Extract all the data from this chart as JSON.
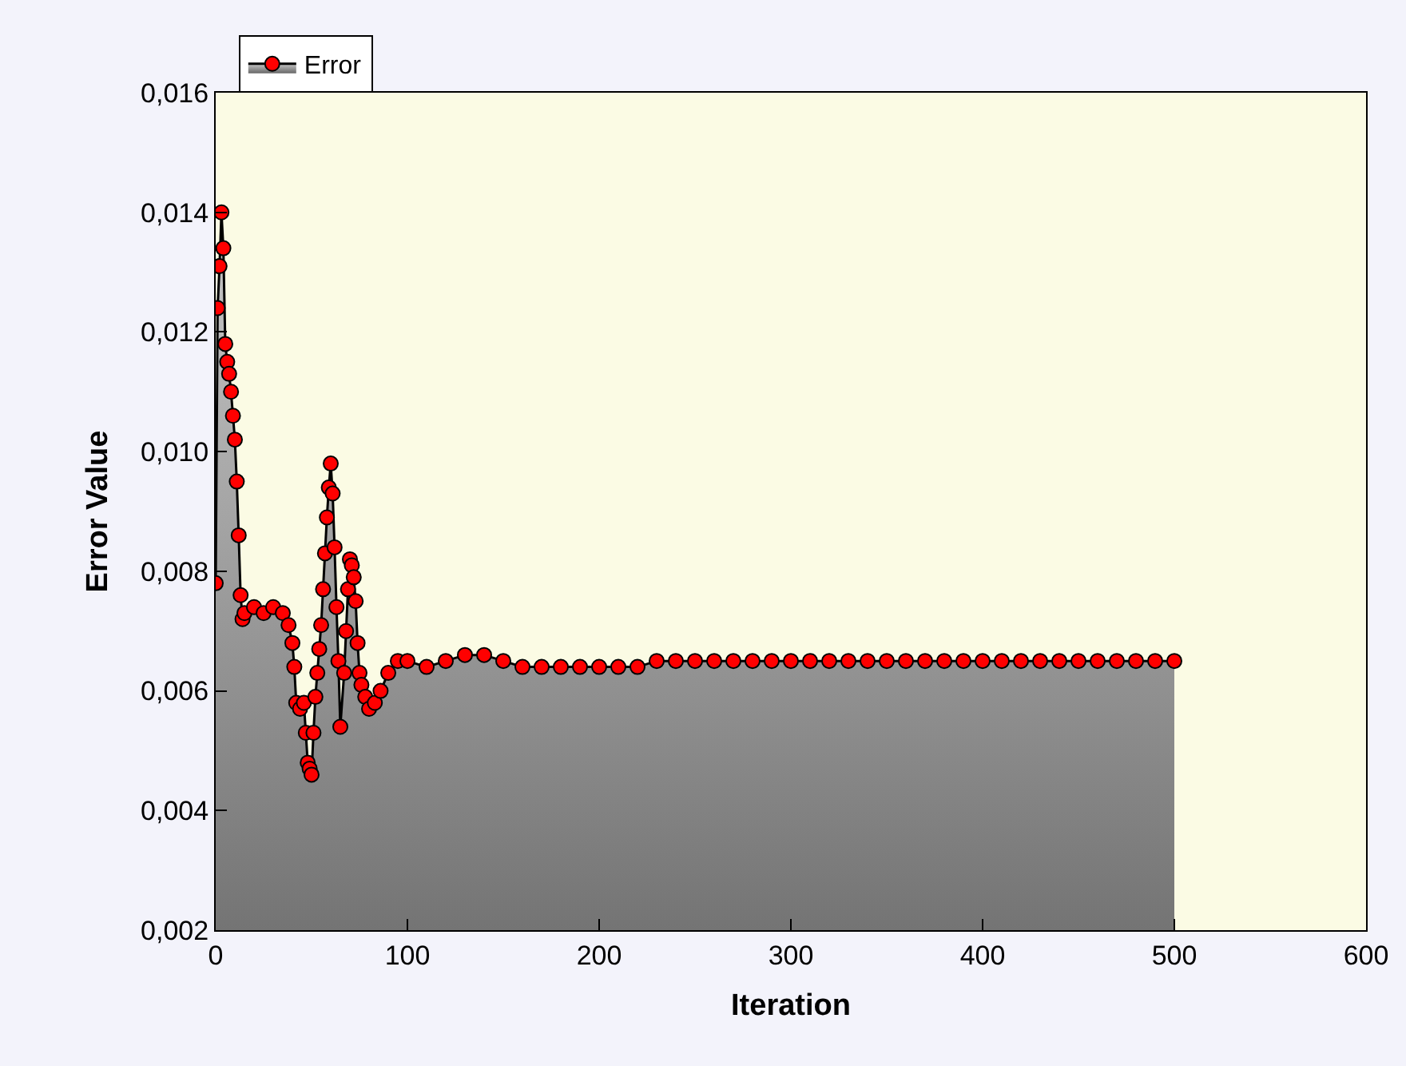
{
  "chart_data": {
    "type": "area",
    "xlabel": "Iteration",
    "ylabel": "Error Value",
    "x": [
      0,
      1,
      2,
      3,
      4,
      5,
      6,
      7,
      8,
      9,
      10,
      11,
      12,
      13,
      14,
      15,
      20,
      25,
      30,
      35,
      38,
      40,
      41,
      42,
      44,
      46,
      47,
      48,
      49,
      50,
      51,
      52,
      53,
      54,
      55,
      56,
      57,
      58,
      59,
      60,
      61,
      62,
      63,
      64,
      65,
      67,
      68,
      69,
      70,
      71,
      72,
      73,
      74,
      75,
      76,
      78,
      80,
      83,
      86,
      90,
      95,
      100,
      110,
      120,
      130,
      140,
      150,
      160,
      170,
      180,
      190,
      200,
      210,
      220,
      230,
      240,
      250,
      260,
      270,
      280,
      290,
      300,
      310,
      320,
      330,
      340,
      350,
      360,
      370,
      380,
      390,
      400,
      410,
      420,
      430,
      440,
      450,
      460,
      470,
      480,
      490,
      500
    ],
    "series": [
      {
        "name": "Error",
        "color": "#ff0000",
        "values": [
          0.0078,
          0.0124,
          0.0131,
          0.014,
          0.0134,
          0.0118,
          0.0115,
          0.0113,
          0.011,
          0.0106,
          0.0102,
          0.0095,
          0.0086,
          0.0076,
          0.0072,
          0.0073,
          0.0074,
          0.0073,
          0.0074,
          0.0073,
          0.0071,
          0.0068,
          0.0064,
          0.0058,
          0.0057,
          0.0058,
          0.0053,
          0.0048,
          0.0047,
          0.0046,
          0.0053,
          0.0059,
          0.0063,
          0.0067,
          0.0071,
          0.0077,
          0.0083,
          0.0089,
          0.0094,
          0.0098,
          0.0093,
          0.0084,
          0.0074,
          0.0065,
          0.0054,
          0.0063,
          0.007,
          0.0077,
          0.0082,
          0.0081,
          0.0079,
          0.0075,
          0.0068,
          0.0063,
          0.0061,
          0.0059,
          0.0057,
          0.0058,
          0.006,
          0.0063,
          0.0065,
          0.0065,
          0.0064,
          0.0065,
          0.0066,
          0.0066,
          0.0065,
          0.0064,
          0.0064,
          0.0064,
          0.0064,
          0.0064,
          0.0064,
          0.0064,
          0.0065,
          0.0065,
          0.0065,
          0.0065,
          0.0065,
          0.0065,
          0.0065,
          0.0065,
          0.0065,
          0.0065,
          0.0065,
          0.0065,
          0.0065,
          0.0065,
          0.0065,
          0.0065,
          0.0065,
          0.0065,
          0.0065,
          0.0065,
          0.0065,
          0.0065,
          0.0065,
          0.0065,
          0.0065,
          0.0065,
          0.0065,
          0.0065
        ]
      }
    ],
    "xlim": [
      0,
      600
    ],
    "xticks": [
      0,
      100,
      200,
      300,
      400,
      500,
      600
    ],
    "ylim": [
      0.002,
      0.016
    ],
    "yticks": [
      {
        "value": 0.002,
        "label": "0,002"
      },
      {
        "value": 0.004,
        "label": "0,004"
      },
      {
        "value": 0.006,
        "label": "0,006"
      },
      {
        "value": 0.008,
        "label": "0,008"
      },
      {
        "value": 0.01,
        "label": "0,010"
      },
      {
        "value": 0.012,
        "label": "0,012"
      },
      {
        "value": 0.014,
        "label": "0,014"
      },
      {
        "value": 0.016,
        "label": "0,016"
      }
    ],
    "marker": "circle",
    "legend": "top left",
    "grid": false
  }
}
